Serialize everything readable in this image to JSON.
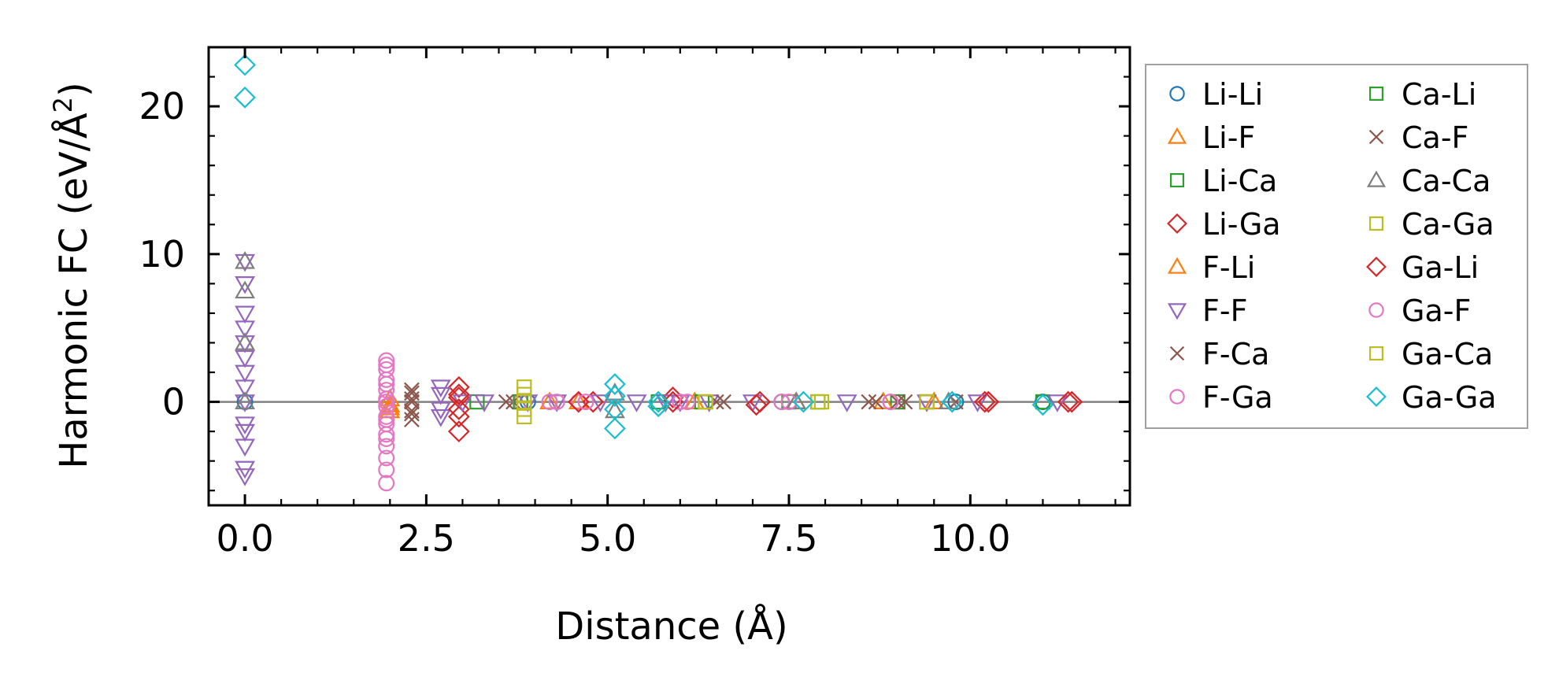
{
  "chart_data": {
    "type": "scatter",
    "xlabel": "Distance (Å)",
    "ylabel": "Harmonic FC (eV/Å²)",
    "ylabel_parts": {
      "main": "Harmonic FC (eV/Å",
      "sup": "2",
      "tail": ")"
    },
    "xlim": [
      -0.5,
      12.2
    ],
    "ylim": [
      -7,
      24
    ],
    "x_ticks": [
      0.0,
      2.5,
      5.0,
      7.5,
      10.0
    ],
    "x_tick_labels": [
      "0.0",
      "2.5",
      "5.0",
      "7.5",
      "10.0"
    ],
    "y_ticks": [
      0,
      10,
      20
    ],
    "y_tick_labels": [
      "0",
      "10",
      "20"
    ],
    "zero_line": true,
    "legend_position": "outside-right",
    "series": [
      {
        "name": "Li-Li",
        "marker": "circle",
        "color": "#1f77b4",
        "x": [
          0,
          3.9,
          7.4,
          9.8,
          11.0
        ],
        "y": [
          0.0,
          0.0,
          0.0,
          0.0,
          0.0
        ]
      },
      {
        "name": "Li-F",
        "marker": "triangle-up",
        "color": "#ff7f0e",
        "x": [
          2.0,
          2.0,
          4.6,
          7.6,
          9.5
        ],
        "y": [
          -0.6,
          -0.2,
          0.0,
          0.0,
          0.0
        ]
      },
      {
        "name": "Li-Ca",
        "marker": "square",
        "color": "#2ca02c",
        "x": [
          3.2,
          5.7,
          7.5,
          9.0,
          11.0
        ],
        "y": [
          0.0,
          0.0,
          0.0,
          0.0,
          0.0
        ]
      },
      {
        "name": "Li-Ga",
        "marker": "diamond",
        "color": "#d62728",
        "x": [
          2.95,
          2.95,
          2.95,
          2.95,
          4.8,
          5.9,
          7.1,
          10.2,
          11.4
        ],
        "y": [
          1.0,
          0.3,
          -1.0,
          -2.0,
          0.0,
          0.3,
          0.0,
          0.0,
          0.0
        ]
      },
      {
        "name": "F-Li",
        "marker": "triangle-up",
        "color": "#ff7f0e",
        "x": [
          2.0,
          2.0,
          4.2,
          6.2,
          8.8
        ],
        "y": [
          -0.4,
          0.2,
          0.0,
          0.0,
          0.0
        ]
      },
      {
        "name": "F-F",
        "marker": "triangle-down",
        "color": "#9467bd",
        "x": [
          0,
          0,
          0,
          0,
          0,
          0,
          0,
          0,
          0,
          0,
          0,
          0,
          0,
          0,
          2.7,
          2.7,
          2.7,
          2.7,
          3.0,
          3.3,
          3.9,
          4.3,
          4.9,
          5.4,
          5.8,
          6.0,
          6.4,
          7.0,
          8.3,
          9.4,
          10.1,
          11.2
        ],
        "y": [
          9.5,
          8.0,
          6.0,
          5.0,
          4.0,
          3.0,
          2.0,
          1.0,
          0.0,
          -1.5,
          -2.0,
          -3.0,
          -4.5,
          -5.0,
          1.0,
          0.5,
          -0.5,
          -1.0,
          0.0,
          0.0,
          0.0,
          0.0,
          0.0,
          0.0,
          0.0,
          0.0,
          0.0,
          0.0,
          0.0,
          0.0,
          0.0,
          0.0
        ]
      },
      {
        "name": "F-Ca",
        "marker": "x",
        "color": "#8c564b",
        "x": [
          2.3,
          2.3,
          2.3,
          2.3,
          3.7,
          6.5,
          8.6,
          9.1,
          9.8
        ],
        "y": [
          0.6,
          0.0,
          -0.6,
          -1.2,
          0.0,
          0.0,
          0.0,
          0.0,
          0.0
        ]
      },
      {
        "name": "F-Ga",
        "marker": "circle",
        "color": "#e377c2",
        "x": [
          1.95,
          1.95,
          1.95,
          1.95,
          1.95,
          1.95,
          1.95,
          1.95,
          1.95,
          1.95,
          1.95,
          1.95,
          1.95,
          3.8,
          4.2,
          4.6,
          6.0,
          7.4,
          8.9
        ],
        "y": [
          2.8,
          2.2,
          1.5,
          0.8,
          0.2,
          -0.3,
          -1.0,
          -1.5,
          -2.2,
          -3.0,
          -3.8,
          -4.6,
          -5.5,
          0.0,
          0.0,
          0.0,
          0.0,
          0.0,
          0.0
        ]
      },
      {
        "name": "Ca-Li",
        "marker": "square",
        "color": "#2ca02c",
        "x": [
          3.8,
          6.3,
          7.9,
          9.4
        ],
        "y": [
          0.0,
          0.0,
          0.0,
          0.0
        ]
      },
      {
        "name": "Ca-F",
        "marker": "x",
        "color": "#8c564b",
        "x": [
          2.3,
          2.3,
          2.3,
          3.6,
          6.6,
          8.7,
          9.0
        ],
        "y": [
          0.8,
          0.2,
          -0.8,
          0.0,
          0.0,
          0.0,
          0.0
        ]
      },
      {
        "name": "Ca-Ca",
        "marker": "triangle-up",
        "color": "#7f7f7f",
        "x": [
          0,
          0,
          0,
          0,
          5.1,
          5.1,
          7.6,
          9.7
        ],
        "y": [
          9.5,
          7.5,
          4.0,
          0.0,
          0.6,
          -0.6,
          0.0,
          0.0
        ]
      },
      {
        "name": "Ca-Ga",
        "marker": "square",
        "color": "#bcbd22",
        "x": [
          3.85,
          3.85,
          3.85,
          6.35,
          7.9,
          9.4
        ],
        "y": [
          1.0,
          0.0,
          -1.0,
          0.0,
          0.0,
          0.0
        ]
      },
      {
        "name": "Ga-Li",
        "marker": "diamond",
        "color": "#d62728",
        "x": [
          2.95,
          2.95,
          4.6,
          5.9,
          7.05,
          10.25,
          11.35
        ],
        "y": [
          0.5,
          -0.5,
          0.0,
          0.0,
          -0.2,
          0.0,
          0.0
        ]
      },
      {
        "name": "Ga-F",
        "marker": "circle",
        "color": "#e377c2",
        "x": [
          1.95,
          1.95,
          1.95,
          1.95,
          1.95,
          4.3,
          4.7,
          6.1,
          7.5,
          8.9
        ],
        "y": [
          2.5,
          1.2,
          0.0,
          -1.2,
          -2.5,
          0.0,
          0.0,
          0.0,
          0.0,
          0.0
        ]
      },
      {
        "name": "Ga-Ca",
        "marker": "square",
        "color": "#bcbd22",
        "x": [
          3.85,
          3.85,
          6.35,
          7.95,
          9.4
        ],
        "y": [
          0.5,
          -0.5,
          0.0,
          0.0,
          0.0
        ]
      },
      {
        "name": "Ga-Ga",
        "marker": "diamond",
        "color": "#17becf",
        "x": [
          0,
          0,
          5.1,
          5.1,
          5.1,
          5.1,
          5.7,
          5.7,
          7.7,
          9.75,
          11.0
        ],
        "y": [
          22.8,
          20.6,
          1.2,
          0.4,
          -0.5,
          -1.8,
          0.0,
          -0.3,
          0.0,
          0.0,
          -0.2
        ]
      }
    ]
  }
}
